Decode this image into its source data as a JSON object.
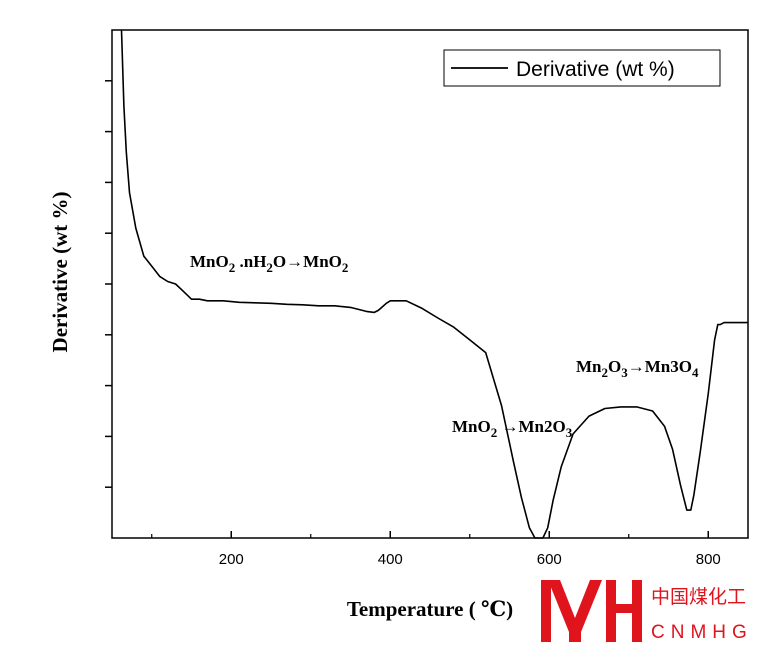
{
  "chart_data": {
    "type": "line",
    "title": "",
    "xlabel": "Temperature ( ℃)",
    "ylabel": "Derivative (wt %)",
    "xlim": [
      50,
      850
    ],
    "ylim": [
      0,
      10
    ],
    "x_ticks": [
      200,
      400,
      600,
      800
    ],
    "x_tick_labels": [
      "200",
      "400",
      "600",
      "800"
    ],
    "y_ticks": [
      1,
      2,
      3,
      4,
      5,
      6,
      7,
      8,
      9
    ],
    "y_tick_labels_shown": false,
    "grid": false,
    "legend": {
      "position": "top-right",
      "entries": [
        "Derivative (wt %)"
      ]
    },
    "series": [
      {
        "name": "Derivative (wt %)",
        "color": "#000000",
        "x": [
          62,
          63,
          65,
          68,
          72,
          80,
          90,
          100,
          110,
          120,
          130,
          140,
          150,
          160,
          170,
          190,
          210,
          230,
          250,
          270,
          290,
          310,
          330,
          350,
          370,
          380,
          385,
          390,
          395,
          400,
          420,
          440,
          460,
          480,
          500,
          520,
          540,
          555,
          565,
          575,
          582,
          588,
          592,
          598,
          605,
          615,
          630,
          650,
          670,
          690,
          710,
          730,
          745,
          755,
          765,
          773,
          778,
          782,
          790,
          800,
          808,
          812,
          815,
          820,
          850
        ],
        "y": [
          10.2,
          9.5,
          8.5,
          7.6,
          6.8,
          6.1,
          5.55,
          5.35,
          5.15,
          5.05,
          5.0,
          4.85,
          4.7,
          4.7,
          4.67,
          4.67,
          4.64,
          4.63,
          4.62,
          4.6,
          4.59,
          4.57,
          4.57,
          4.54,
          4.46,
          4.44,
          4.48,
          4.55,
          4.62,
          4.67,
          4.67,
          4.52,
          4.33,
          4.15,
          3.9,
          3.65,
          2.6,
          1.5,
          0.8,
          0.2,
          -0.18,
          -0.28,
          -0.22,
          0.2,
          0.75,
          1.4,
          2.05,
          2.4,
          2.55,
          2.58,
          2.58,
          2.5,
          2.2,
          1.75,
          1.05,
          0.55,
          0.55,
          0.85,
          1.7,
          2.85,
          3.9,
          4.2,
          4.2,
          4.24,
          4.24
        ]
      }
    ],
    "annotations": [
      {
        "text": "MnO2 .nH2O→MnO2",
        "x": 190,
        "y": 3.5
      },
      {
        "text": "MnO2 →Mn2O3",
        "x": 455,
        "y": -2.4
      },
      {
        "text": "Mn2O3→Mn3O4",
        "x": 660,
        "y": 0.0
      }
    ]
  },
  "watermark": {
    "logo_text": "CNMHG",
    "chinese_text": "中国煤化工",
    "latin_text": "CNMHG",
    "color": "#e0141d"
  }
}
